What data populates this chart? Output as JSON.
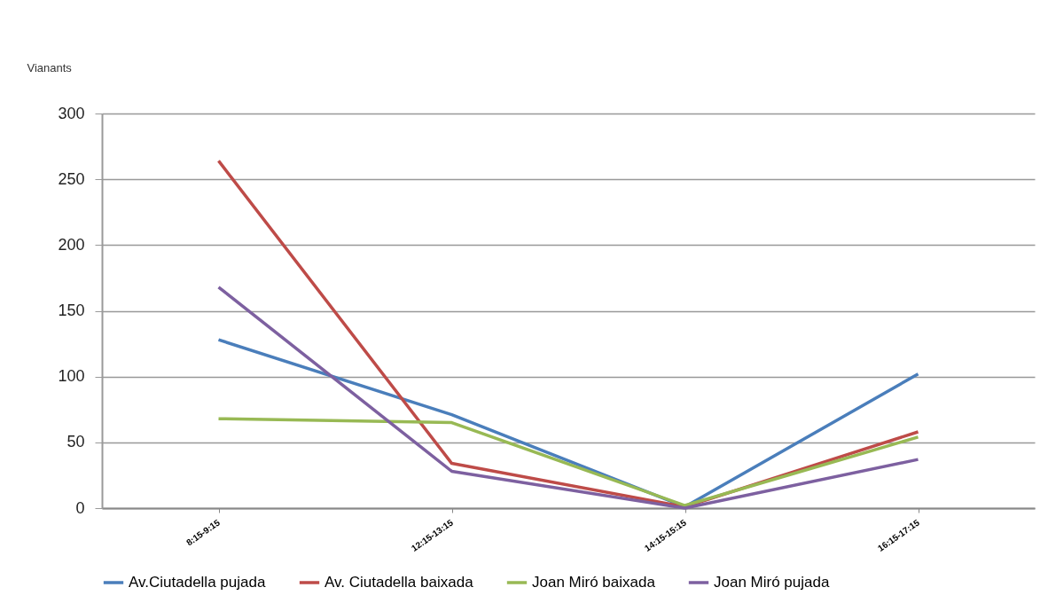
{
  "chart_data": {
    "type": "line",
    "ylabel": "Vianants",
    "categories": [
      "8:15-9:15",
      "12:15-13:15",
      "14:15-15:15",
      "16:15-17:15"
    ],
    "series": [
      {
        "name": "Av.Ciutadella pujada",
        "color": "#4a7ebb",
        "values": [
          128,
          71,
          1,
          102
        ]
      },
      {
        "name": "Av. Ciutadella baixada",
        "color": "#be4b48",
        "values": [
          264,
          34,
          1,
          58
        ]
      },
      {
        "name": "Joan Miró baixada",
        "color": "#98b954",
        "values": [
          68,
          65,
          2,
          54
        ]
      },
      {
        "name": "Joan Miró pujada",
        "color": "#7d60a0",
        "values": [
          168,
          28,
          0,
          37
        ]
      }
    ],
    "ylim": [
      0,
      300
    ],
    "yticks": [
      0,
      50,
      100,
      150,
      200,
      250,
      300
    ],
    "grid": "y",
    "legend": "bottom",
    "marker": "none",
    "line_style": "solid"
  }
}
